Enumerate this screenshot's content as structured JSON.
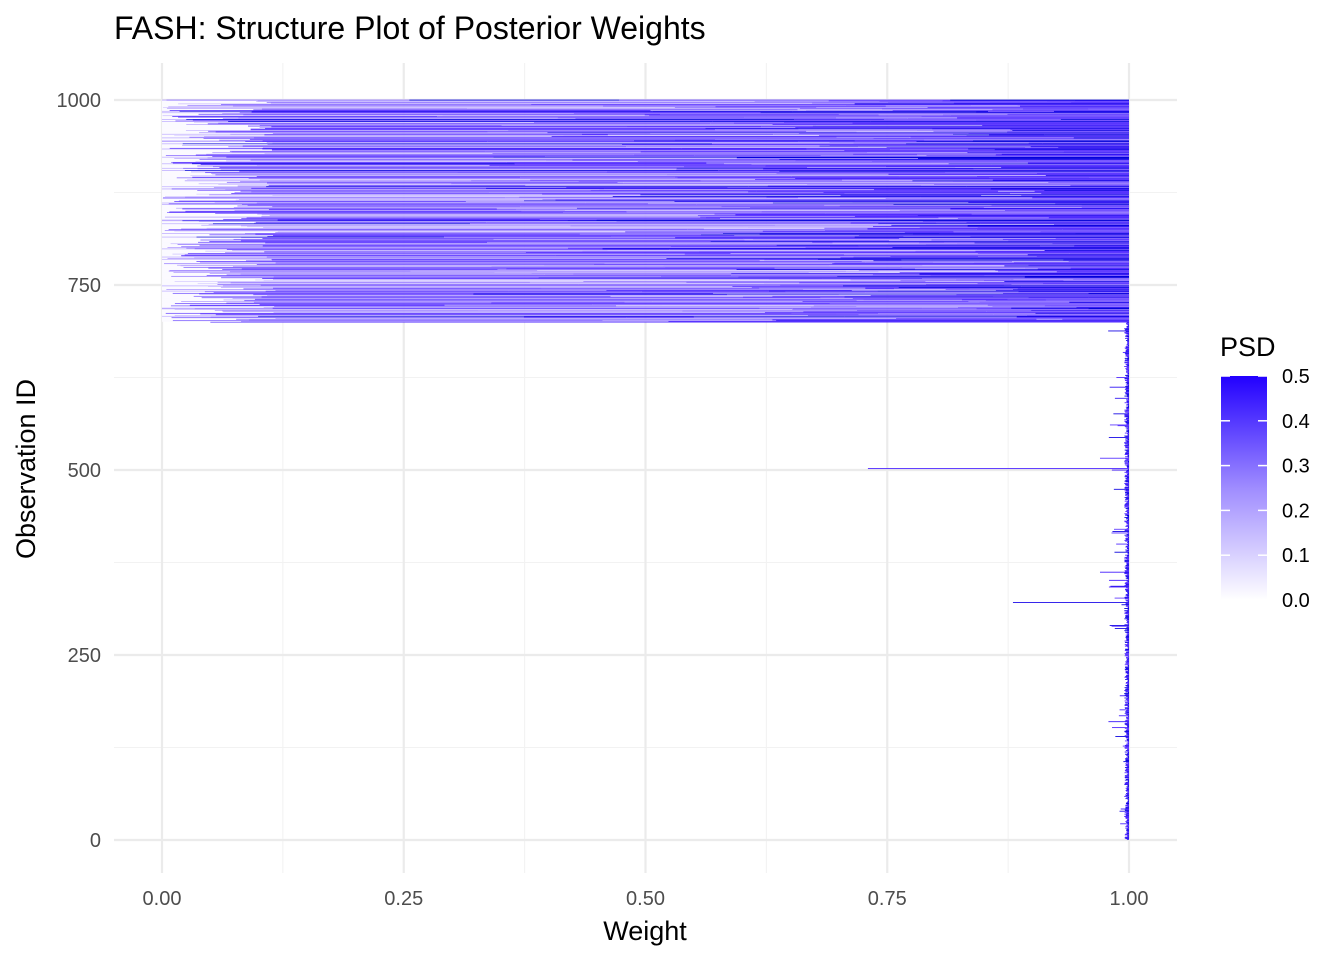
{
  "chart_data": {
    "type": "bar",
    "orientation": "horizontal",
    "stacked": true,
    "title": "FASH: Structure Plot of Posterior Weights",
    "xlabel": "Weight",
    "ylabel": "Observation ID",
    "xlim": [
      0,
      1
    ],
    "ylim": [
      0,
      1000
    ],
    "x_ticks": [
      0,
      0.25,
      0.5,
      0.75,
      1
    ],
    "x_tick_labels": [
      "0.00",
      "0.25",
      "0.50",
      "0.75",
      "1.00"
    ],
    "y_ticks": [
      0,
      250,
      500,
      750,
      1000
    ],
    "y_tick_labels": [
      "0",
      "250",
      "500",
      "750",
      "1000"
    ],
    "grid": true,
    "legend": {
      "title": "PSD",
      "placement": "right",
      "type": "colorbar",
      "range": [
        0,
        0.5
      ],
      "tick_labels": [
        "0.5",
        "0.4",
        "0.3",
        "0.2",
        "0.1",
        "0.0"
      ],
      "low_color": "#ffffff",
      "high_color": "#0000ff"
    },
    "observation_count": 1000,
    "regions": [
      {
        "ids": [
          1,
          700
        ],
        "pattern": "almost all weight on the lowest-PSD component; dark PSD slivers at the right edge",
        "weight_low_psd": 0.99
      },
      {
        "ids": [
          701,
          1000
        ],
        "pattern": "weight spread across many PSD components; darker segments increase toward the right",
        "weight_low_psd": 0.0
      }
    ],
    "notable_observations": [
      {
        "id": 502,
        "low_psd_weight": 0.73,
        "high_psd_weight": 0.27
      },
      {
        "id": 321,
        "low_psd_weight": 0.88,
        "high_psd_weight": 0.12
      },
      {
        "id": 612,
        "low_psd_weight": 0.98,
        "high_psd_weight": 0.02
      },
      {
        "id": 362,
        "low_psd_weight": 0.97,
        "high_psd_weight": 0.03
      },
      {
        "id": 290,
        "low_psd_weight": 0.98,
        "high_psd_weight": 0.02
      },
      {
        "id": 516,
        "low_psd_weight": 0.97,
        "high_psd_weight": 0.03
      },
      {
        "id": 700,
        "low_psd_weight": 0.05,
        "high_psd_weight": 0.95
      }
    ]
  }
}
